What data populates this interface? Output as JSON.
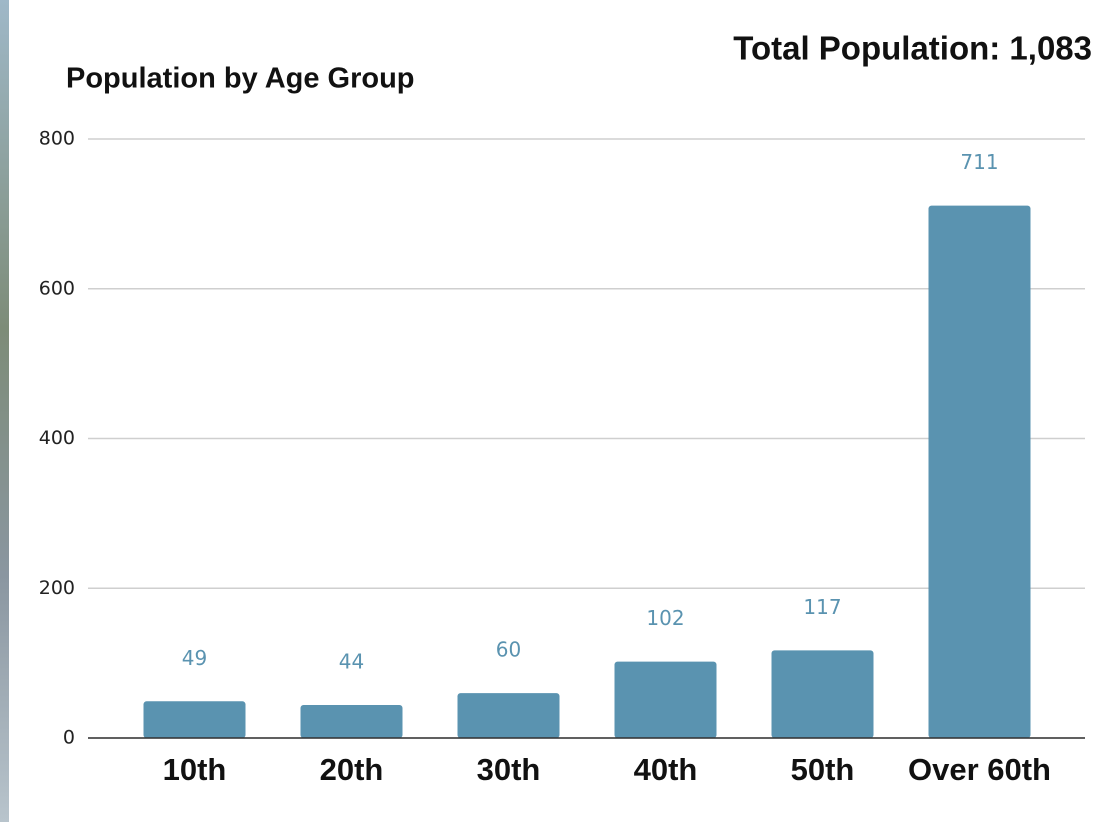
{
  "chart_data": {
    "type": "bar",
    "title": "Population by Age Group",
    "annotation": "Total Population: 1,083",
    "categories": [
      "10th",
      "20th",
      "30th",
      "40th",
      "50th",
      "Over 60th"
    ],
    "values": [
      49,
      44,
      60,
      102,
      117,
      711
    ],
    "color": "#5a93b0",
    "ylim": [
      0,
      800
    ],
    "yticks": [
      0,
      200,
      400,
      600,
      800
    ],
    "grid": true
  }
}
